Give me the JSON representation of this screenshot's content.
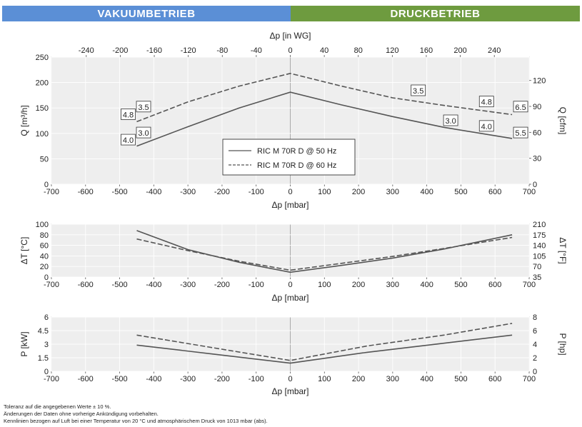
{
  "header": {
    "vacuum_label": "VAKUUMBETRIEB",
    "pressure_label": "DRUCKBETRIEB"
  },
  "colors": {
    "vacuum": "#5b8fd6",
    "pressure": "#6e9b3f",
    "curve": "#555555"
  },
  "chart_data": [
    {
      "type": "line",
      "name": "flow",
      "xlabel": "Δp [mbar]",
      "x2label": "Δp [in WG]",
      "ylabel": "Q [m³/h]",
      "y2label": "Q [cfm]",
      "xlim": [
        -700,
        700
      ],
      "ylim": [
        0,
        250
      ],
      "x2lim": [
        -281,
        281
      ],
      "y2lim": [
        0,
        147
      ],
      "xticks": [
        -700,
        -600,
        -500,
        -400,
        -300,
        -200,
        -100,
        0,
        100,
        200,
        300,
        400,
        500,
        600,
        700
      ],
      "x2ticks": [
        -240,
        -200,
        -160,
        -120,
        -80,
        -40,
        0,
        40,
        80,
        120,
        160,
        200,
        240
      ],
      "yticks": [
        0,
        50,
        100,
        150,
        200,
        250
      ],
      "y2ticks": [
        0,
        30,
        60,
        90,
        120
      ],
      "grid": true,
      "legend": {
        "placement": "center",
        "entries": [
          "RIC M 70R D @ 50 Hz",
          "RIC M 70R D @ 60 Hz"
        ]
      },
      "series": [
        {
          "name": "RIC M 70R D @ 50 Hz",
          "style": "solid",
          "x": [
            -450,
            -300,
            -150,
            0,
            150,
            300,
            450,
            650
          ],
          "y": [
            75,
            113,
            150,
            181,
            156,
            133,
            112,
            90
          ]
        },
        {
          "name": "RIC M 70R D @ 60 Hz",
          "style": "dashed",
          "x": [
            -450,
            -300,
            -150,
            0,
            150,
            300,
            450,
            650
          ],
          "y": [
            123,
            162,
            193,
            218,
            193,
            170,
            155,
            137
          ]
        }
      ],
      "annotations": [
        {
          "text": "4.0",
          "x": -475,
          "y": 87
        },
        {
          "text": "3.0",
          "x": -430,
          "y": 101
        },
        {
          "text": "4.8",
          "x": -475,
          "y": 137
        },
        {
          "text": "3.5",
          "x": -430,
          "y": 152
        },
        {
          "text": "3.5",
          "x": 375,
          "y": 184
        },
        {
          "text": "4.8",
          "x": 575,
          "y": 162
        },
        {
          "text": "6.5",
          "x": 675,
          "y": 152
        },
        {
          "text": "3.0",
          "x": 470,
          "y": 125
        },
        {
          "text": "4.0",
          "x": 575,
          "y": 114
        },
        {
          "text": "5.5",
          "x": 675,
          "y": 101
        }
      ]
    },
    {
      "type": "line",
      "name": "temperature",
      "xlabel": "Δp [mbar]",
      "ylabel": "ΔT [°C]",
      "y2label": "ΔT [°F]",
      "xlim": [
        -700,
        700
      ],
      "ylim": [
        0,
        100
      ],
      "xticks": [
        -700,
        -600,
        -500,
        -400,
        -300,
        -200,
        -100,
        0,
        100,
        200,
        300,
        400,
        500,
        600,
        700
      ],
      "yticks": [
        0,
        20,
        40,
        60,
        80,
        100
      ],
      "yticks_labels": [
        "0",
        "20",
        "40",
        "60",
        "80",
        "100"
      ],
      "y2ticks_labels": [
        "35",
        "70",
        "105",
        "140",
        "175",
        "210"
      ],
      "grid": true,
      "series": [
        {
          "name": "RIC M 70R D @ 50 Hz",
          "style": "solid",
          "x": [
            -450,
            -300,
            -150,
            0,
            150,
            300,
            450,
            650
          ],
          "y": [
            88,
            52,
            28,
            9,
            22,
            36,
            53,
            80
          ]
        },
        {
          "name": "RIC M 70R D @ 60 Hz",
          "style": "dashed",
          "x": [
            -450,
            -300,
            -150,
            0,
            150,
            300,
            450,
            650
          ],
          "y": [
            72,
            50,
            30,
            13,
            26,
            39,
            54,
            75
          ]
        }
      ]
    },
    {
      "type": "line",
      "name": "power",
      "xlabel": "Δp [mbar]",
      "ylabel": "P [kW]",
      "y2label": "P [hp]",
      "xlim": [
        -700,
        700
      ],
      "ylim": [
        0,
        6
      ],
      "xticks": [
        -700,
        -600,
        -500,
        -400,
        -300,
        -200,
        -100,
        0,
        100,
        200,
        300,
        400,
        500,
        600,
        700
      ],
      "yticks": [
        0,
        1.5,
        3,
        4.5,
        6
      ],
      "yticks_labels": [
        "0",
        "1.5",
        "3",
        "4.5",
        "6"
      ],
      "y2ticks_labels": [
        "0",
        "2",
        "4",
        "6",
        "8"
      ],
      "grid": true,
      "series": [
        {
          "name": "RIC M 70R D @ 50 Hz",
          "style": "solid",
          "x": [
            -450,
            -225,
            0,
            225,
            450,
            650
          ],
          "y": [
            2.9,
            1.9,
            0.9,
            2.1,
            3.1,
            4.0
          ]
        },
        {
          "name": "RIC M 70R D @ 60 Hz",
          "style": "dashed",
          "x": [
            -450,
            -225,
            0,
            225,
            450,
            650
          ],
          "y": [
            4.0,
            2.6,
            1.2,
            2.8,
            4.0,
            5.3
          ]
        }
      ]
    }
  ],
  "notes": [
    "Toleranz auf die angegebenen Werte ± 10 %.",
    "Änderungen der Daten ohne vorherige Ankündigung vorbehalten.",
    "Kennlinien bezogen auf Luft bei einer Temperatur von 20 °C und atmosphärischem Druck von 1013 mbar (abs)."
  ]
}
